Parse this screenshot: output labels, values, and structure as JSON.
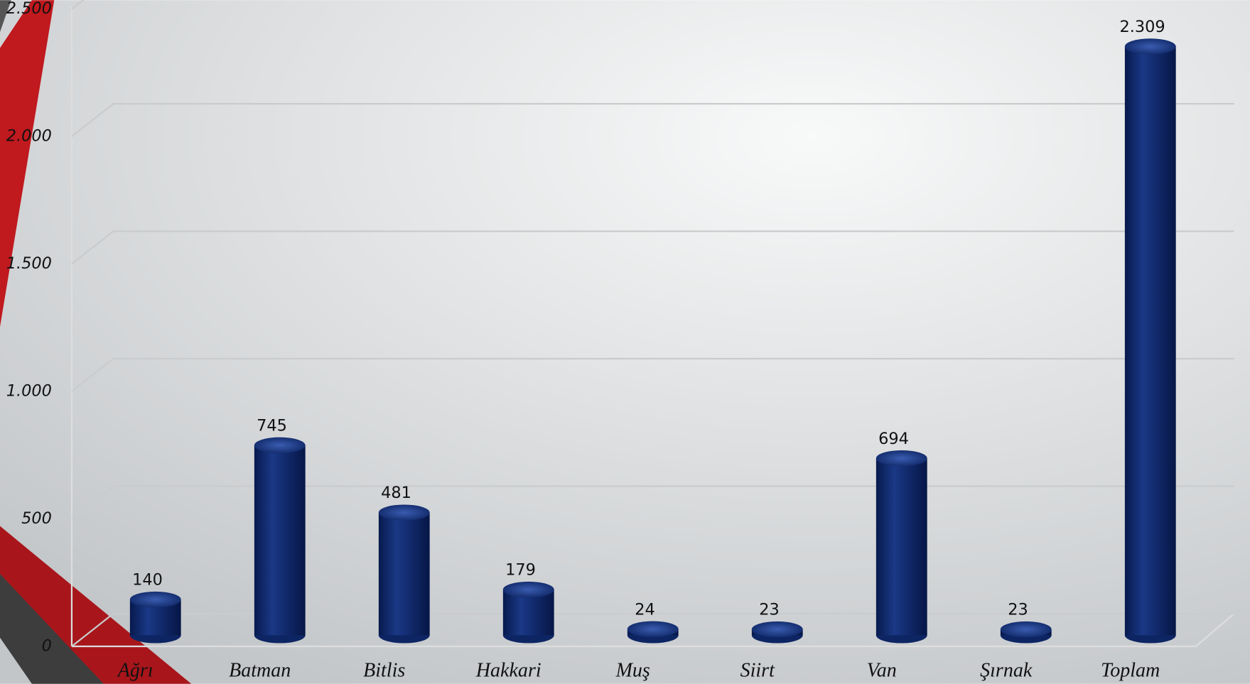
{
  "chart_data": {
    "type": "bar",
    "categories": [
      "Ağrı",
      "Batman",
      "Bitlis",
      "Hakkari",
      "Muş",
      "Siirt",
      "Van",
      "Şırnak",
      "Toplam"
    ],
    "values": [
      140,
      745,
      481,
      179,
      24,
      23,
      694,
      23,
      2309
    ],
    "value_labels": [
      "140",
      "745",
      "481",
      "179",
      "24",
      "23",
      "694",
      "23",
      "2.309"
    ],
    "color": "#0d2563",
    "ylim": [
      0,
      2500
    ],
    "yticks": [
      0,
      500,
      {
        "value": 1000,
        "label": "1.000"
      },
      {
        "value": 1500,
        "label": "1.500"
      },
      {
        "value": 2000,
        "label": "2.000"
      },
      {
        "value": 2500,
        "label": "2.500"
      }
    ],
    "grid": true
  }
}
